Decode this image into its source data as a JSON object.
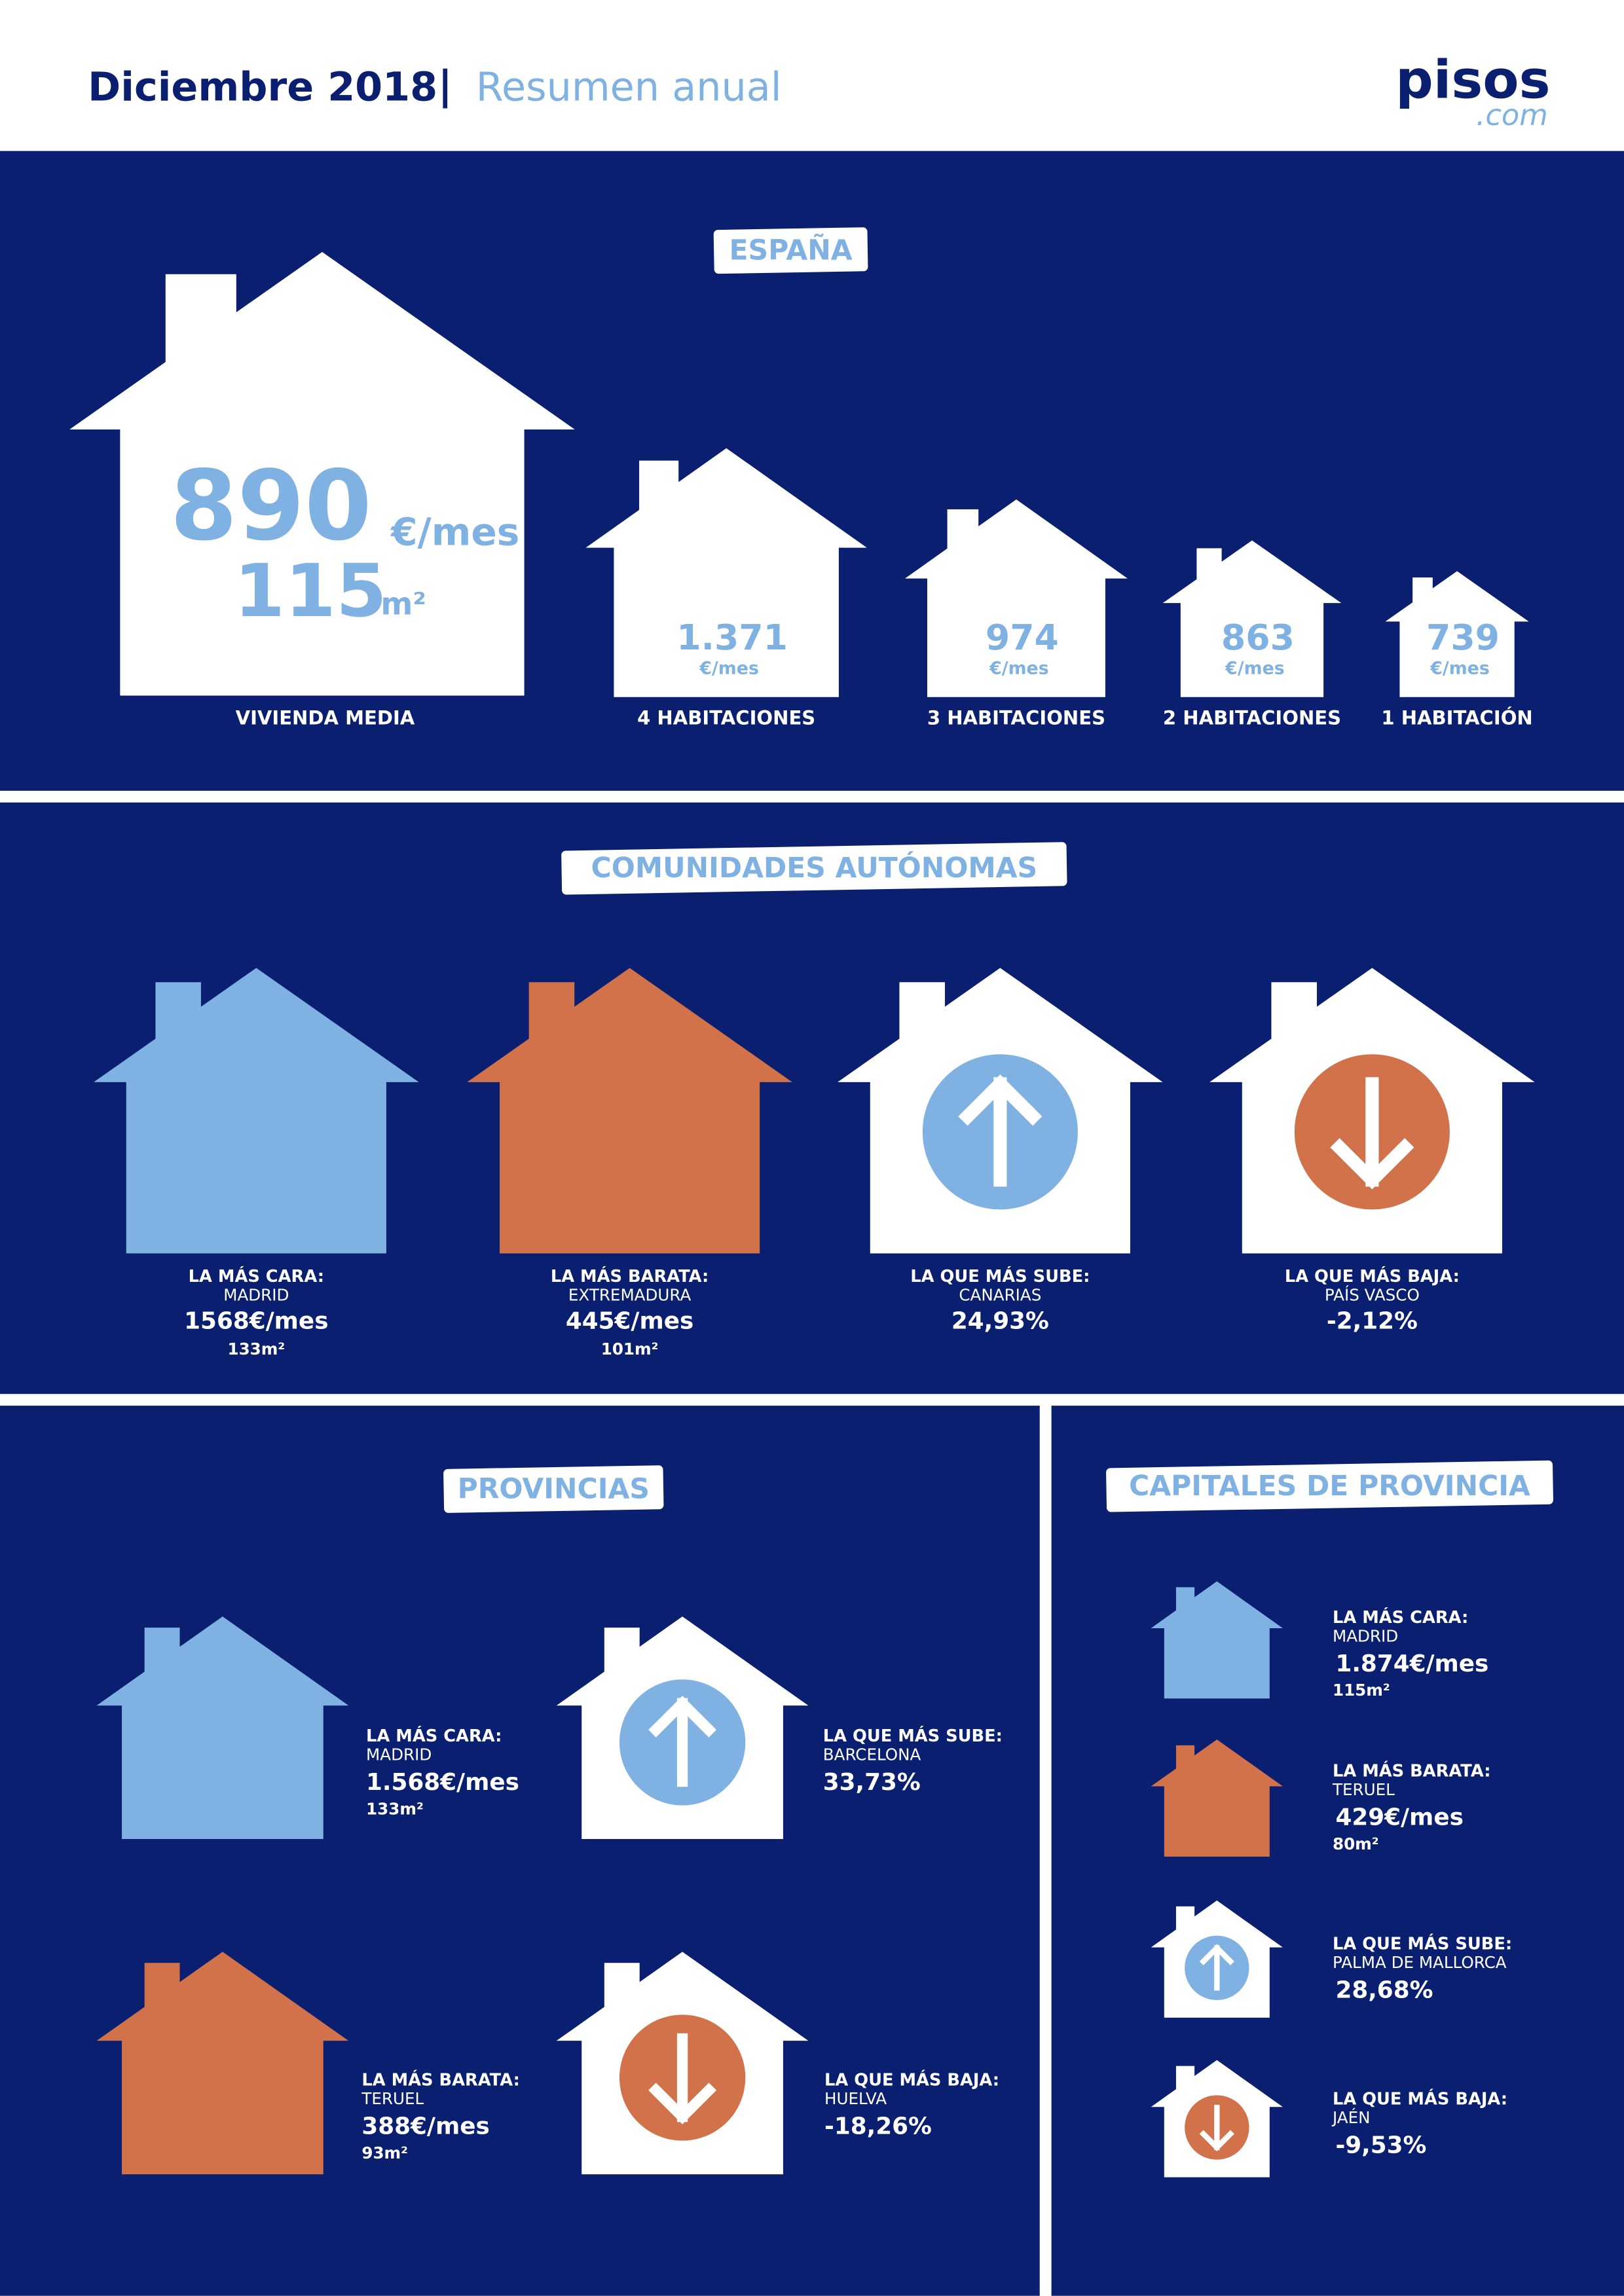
{
  "header": {
    "title": "Diciembre 2018",
    "separator": "|",
    "subtitle": "Resumen anual",
    "logo": "pisos",
    "logo_suffix": ".com"
  },
  "espana": {
    "title": "ESPAÑA",
    "main": {
      "price": "890",
      "unit": "€/mes",
      "area": "115",
      "area_unit": "m²",
      "label": "VIVIENDA MEDIA"
    },
    "rooms": [
      {
        "price": "1.371",
        "unit": "€/mes",
        "label": "4 HABITACIONES"
      },
      {
        "price": "974",
        "unit": "€/mes",
        "label": "3 HABITACIONES"
      },
      {
        "price": "863",
        "unit": "€/mes",
        "label": "2 HABITACIONES"
      },
      {
        "price": "739",
        "unit": "€/mes",
        "label": "1 HABITACIÓN"
      }
    ]
  },
  "comunidades": {
    "title": "COMUNIDADES AUTÓNOMAS",
    "items": [
      {
        "heading": "LA MÁS CARA:",
        "place": "MADRID",
        "value": "1568€/mes",
        "area": "133m²"
      },
      {
        "heading": "LA MÁS BARATA:",
        "place": "EXTREMADURA",
        "value": "445€/mes",
        "area": "101m²"
      },
      {
        "heading": "LA QUE MÁS SUBE:",
        "place": "CANARIAS",
        "value": "24,93%"
      },
      {
        "heading": "LA QUE MÁS BAJA:",
        "place": "PAÍS VASCO",
        "value": "-2,12%"
      }
    ]
  },
  "provincias": {
    "title": "PROVINCIAS",
    "items": [
      {
        "heading": "LA MÁS CARA:",
        "place": "MADRID",
        "value": "1.568€/mes",
        "area": "133m²"
      },
      {
        "heading": "LA QUE MÁS SUBE:",
        "place": "BARCELONA",
        "value": "33,73%"
      },
      {
        "heading": "LA MÁS BARATA:",
        "place": "TERUEL",
        "value": "388€/mes",
        "area": "93m²"
      },
      {
        "heading": "LA QUE MÁS BAJA:",
        "place": "HUELVA",
        "value": "-18,26%"
      }
    ]
  },
  "capitales": {
    "title": "CAPITALES DE PROVINCIA",
    "items": [
      {
        "heading": "LA MÁS CARA:",
        "place": "MADRID",
        "value": "1.874€/mes",
        "area": "115m²"
      },
      {
        "heading": "LA MÁS BARATA:",
        "place": "TERUEL",
        "value": "429€/mes",
        "area": "80m²"
      },
      {
        "heading": "LA QUE MÁS SUBE:",
        "place": "PALMA DE MALLORCA",
        "value": "28,68%"
      },
      {
        "heading": "LA QUE MÁS BAJA:",
        "place": "JAÉN",
        "value": "-9,53%"
      }
    ]
  }
}
